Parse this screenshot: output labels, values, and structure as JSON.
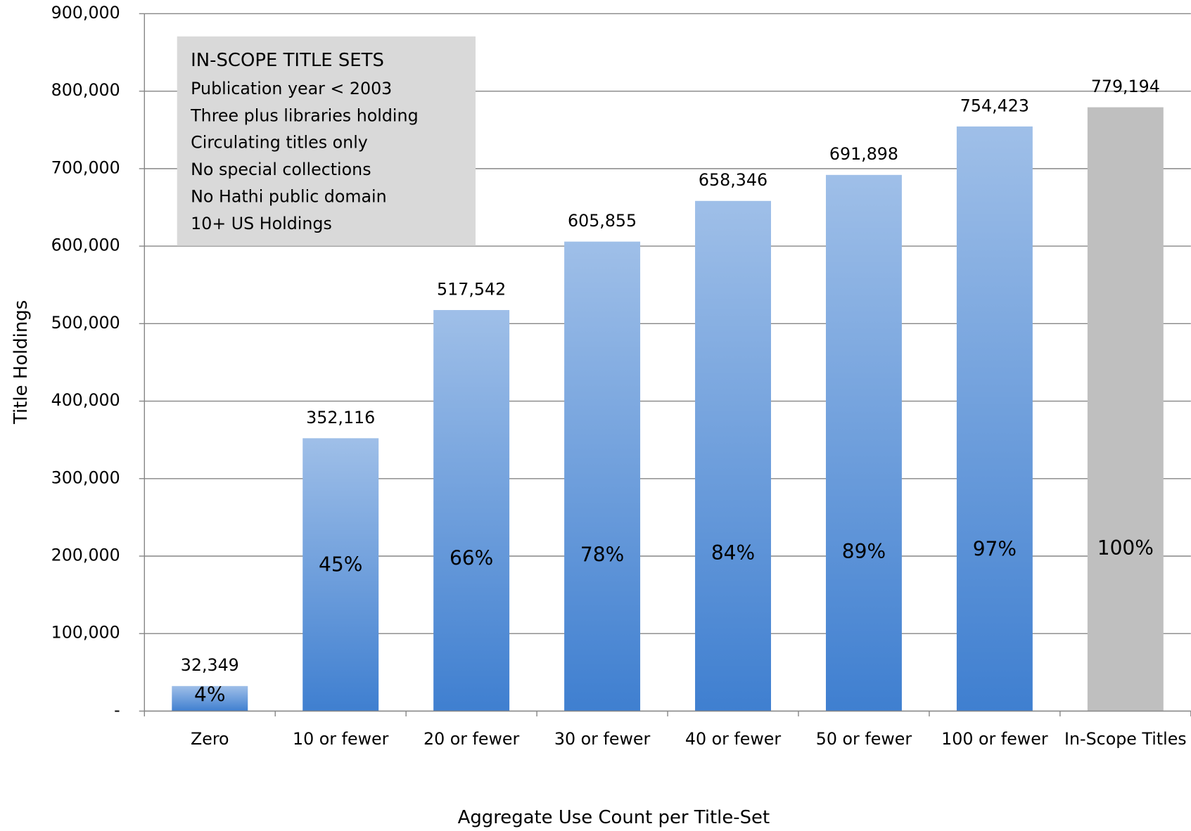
{
  "chart_data": {
    "type": "bar",
    "categories": [
      "Zero",
      "10 or fewer",
      "20 or fewer",
      "30 or fewer",
      "40 or fewer",
      "50 or fewer",
      "100 or fewer",
      "In-Scope Titles"
    ],
    "values": [
      32349,
      352116,
      517542,
      605855,
      658346,
      691898,
      754423,
      779194
    ],
    "value_labels": [
      "32,349",
      "352,116",
      "517,542",
      "605,855",
      "658,346",
      "691,898",
      "754,423",
      "779,194"
    ],
    "percent_labels": [
      "4%",
      "45%",
      "66%",
      "78%",
      "84%",
      "89%",
      "97%",
      "100%"
    ],
    "colors": [
      "#3f7fd0",
      "#3f7fd0",
      "#3f7fd0",
      "#3f7fd0",
      "#3f7fd0",
      "#3f7fd0",
      "#3f7fd0",
      "#bfbfbf"
    ],
    "x_label": "Aggregate Use Count per Title-Set",
    "y_label": "Title Holdings",
    "ylim": [
      0,
      900000
    ],
    "yticks": [
      {
        "value": 0,
        "label": "-"
      },
      {
        "value": 100000,
        "label": "100,000"
      },
      {
        "value": 200000,
        "label": "200,000"
      },
      {
        "value": 300000,
        "label": "300,000"
      },
      {
        "value": 400000,
        "label": "400,000"
      },
      {
        "value": 500000,
        "label": "500,000"
      },
      {
        "value": 600000,
        "label": "600,000"
      },
      {
        "value": 700000,
        "label": "700,000"
      },
      {
        "value": 800000,
        "label": "800,000"
      },
      {
        "value": 900000,
        "label": "900,000"
      }
    ],
    "grid": true,
    "annotation": {
      "title": "IN-SCOPE TITLE SETS",
      "lines": [
        "Publication year < 2003",
        "Three plus libraries holding",
        "Circulating titles only",
        "No special collections",
        "No Hathi public domain",
        "10+ US Holdings"
      ]
    }
  }
}
